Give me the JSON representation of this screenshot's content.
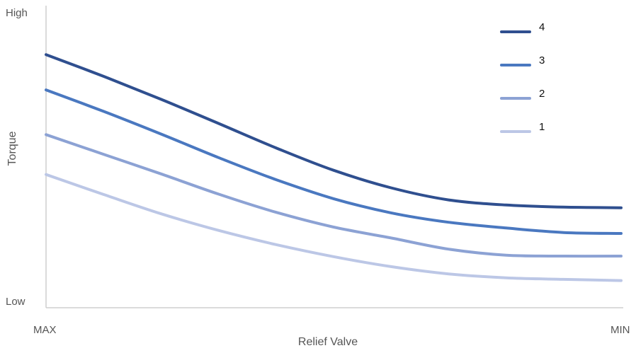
{
  "chart_data": {
    "type": "line",
    "xlabel": "Relief Valve",
    "ylabel": "Torque",
    "x_ticks": [
      "MAX",
      "MIN"
    ],
    "y_ticks": [
      "Low",
      "High"
    ],
    "xlim": [
      0,
      1
    ],
    "ylim": [
      0,
      1
    ],
    "grid": false,
    "legend_position": "top-right",
    "x": [
      0,
      0.1,
      0.2,
      0.3,
      0.4,
      0.5,
      0.6,
      0.7,
      0.8,
      0.9,
      1.0
    ],
    "series": [
      {
        "name": "4",
        "color": "#2f4f8f",
        "values": [
          0.838,
          0.766,
          0.69,
          0.61,
          0.529,
          0.455,
          0.397,
          0.357,
          0.34,
          0.333,
          0.331
        ]
      },
      {
        "name": "3",
        "color": "#4a78c0",
        "values": [
          0.721,
          0.65,
          0.575,
          0.497,
          0.424,
          0.361,
          0.314,
          0.283,
          0.264,
          0.249,
          0.246
        ]
      },
      {
        "name": "2",
        "color": "#8ca2d4",
        "values": [
          0.573,
          0.508,
          0.443,
          0.376,
          0.316,
          0.267,
          0.231,
          0.194,
          0.174,
          0.171,
          0.171
        ]
      },
      {
        "name": "1",
        "color": "#bcc7e6",
        "values": [
          0.441,
          0.375,
          0.311,
          0.256,
          0.209,
          0.169,
          0.136,
          0.112,
          0.099,
          0.094,
          0.09
        ]
      }
    ]
  }
}
